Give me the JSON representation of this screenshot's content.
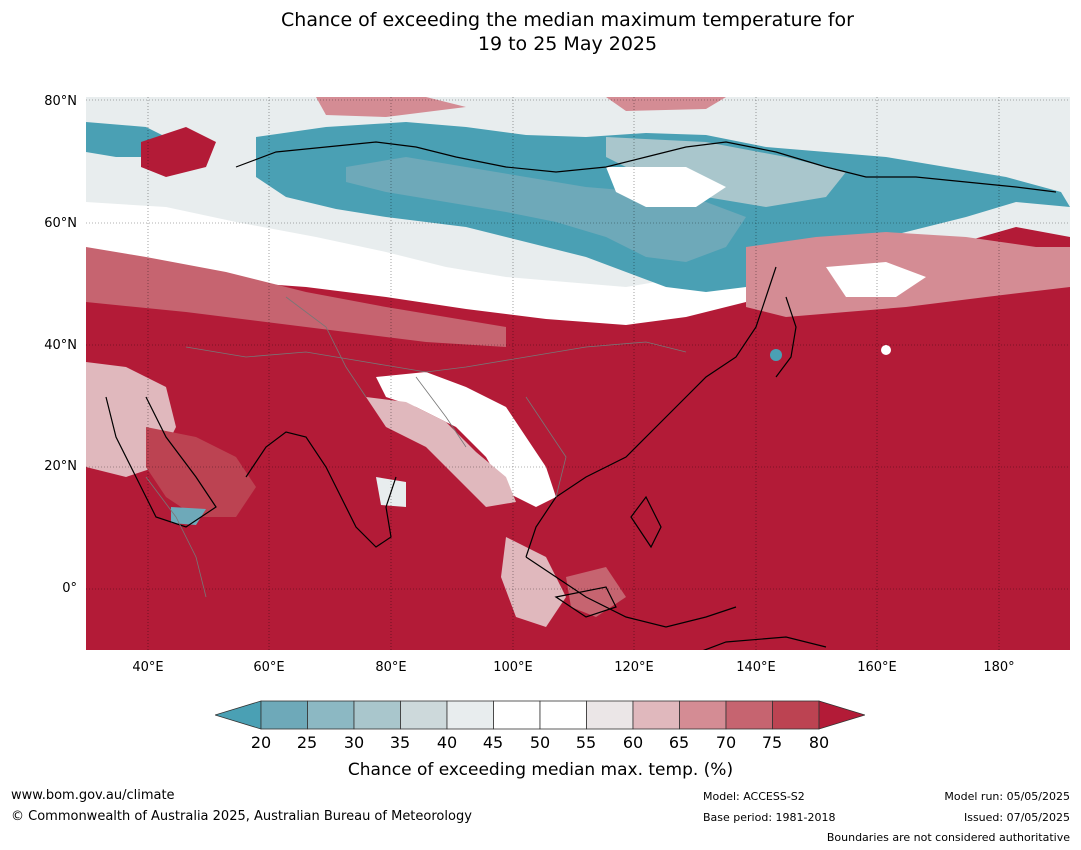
{
  "title_line1": "Chance of exceeding the median maximum temperature for",
  "title_line2": "19 to 25 May 2025",
  "map": {
    "lat_labels": [
      "80°N",
      "60°N",
      "40°N",
      "20°N",
      "0°"
    ],
    "lon_labels": [
      "40°E",
      "60°E",
      "80°E",
      "100°E",
      "120°E",
      "140°E",
      "160°E",
      "180°"
    ],
    "colors": {
      "c20": "#4aa0b4",
      "c25": "#6ea9b9",
      "c30": "#8cb8c3",
      "c35": "#a9c6cc",
      "c40": "#cdd9db",
      "c45": "#e8edee",
      "c50": "#ffffff",
      "c55": "#ebe6e7",
      "c60": "#e0b8bd",
      "c65": "#d48c94",
      "c70": "#c66470",
      "c75": "#bc4352",
      "c80": "#b31b37"
    }
  },
  "colorbar": {
    "ticks": [
      "20",
      "25",
      "30",
      "35",
      "40",
      "45",
      "50",
      "55",
      "60",
      "65",
      "70",
      "75",
      "80"
    ],
    "label": "Chance of exceeding median max. temp. (%)"
  },
  "footer": {
    "website": "www.bom.gov.au/climate",
    "copyright": "© Commonwealth of Australia 2025, Australian Bureau of Meteorology",
    "model": "Model: ACCESS-S2",
    "base_period": "Base period: 1981-2018",
    "model_run": "Model run: 05/05/2025",
    "issued": "Issued: 07/05/2025",
    "disclaimer": "Boundaries are not considered authoritative"
  }
}
